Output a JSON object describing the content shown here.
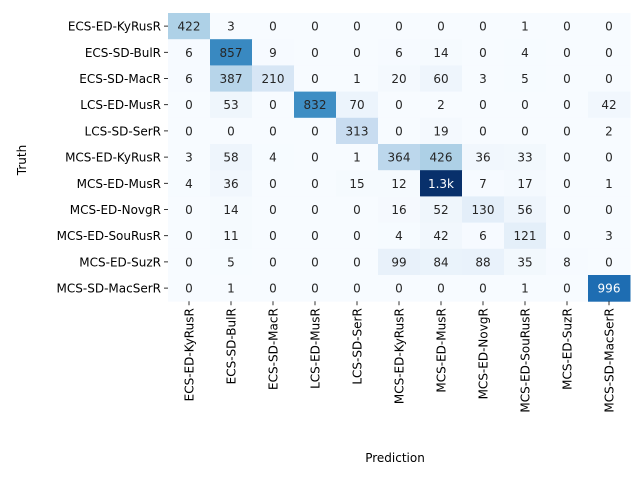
{
  "chart_data": {
    "type": "heatmap",
    "title": "",
    "xlabel": "Prediction",
    "ylabel": "Truth",
    "colormap": "Blues",
    "color_max": 1300,
    "grid": false,
    "legend": "none",
    "rows": [
      "ECS-ED-KyRusR",
      "ECS-SD-BulR",
      "ECS-SD-MacR",
      "LCS-ED-MusR",
      "LCS-SD-SerR",
      "MCS-ED-KyRusR",
      "MCS-ED-MusR",
      "MCS-ED-NovgR",
      "MCS-ED-SouRusR",
      "MCS-ED-SuzR",
      "MCS-SD-MacSerR"
    ],
    "columns": [
      "ECS-ED-KyRusR",
      "ECS-SD-BulR",
      "ECS-SD-MacR",
      "LCS-ED-MusR",
      "LCS-SD-SerR",
      "MCS-ED-KyRusR",
      "MCS-ED-MusR",
      "MCS-ED-NovgR",
      "MCS-ED-SouRusR",
      "MCS-ED-SuzR",
      "MCS-SD-MacSerR"
    ],
    "values": [
      [
        422,
        3,
        0,
        0,
        0,
        0,
        0,
        0,
        1,
        0,
        0
      ],
      [
        6,
        857,
        9,
        0,
        0,
        6,
        14,
        0,
        4,
        0,
        0
      ],
      [
        6,
        387,
        210,
        0,
        1,
        20,
        60,
        3,
        5,
        0,
        0
      ],
      [
        0,
        53,
        0,
        832,
        70,
        0,
        2,
        0,
        0,
        0,
        42
      ],
      [
        0,
        0,
        0,
        0,
        313,
        0,
        19,
        0,
        0,
        0,
        2
      ],
      [
        3,
        58,
        4,
        0,
        1,
        364,
        426,
        36,
        33,
        0,
        0
      ],
      [
        4,
        36,
        0,
        0,
        15,
        12,
        1300,
        7,
        17,
        0,
        1
      ],
      [
        0,
        14,
        0,
        0,
        0,
        16,
        52,
        130,
        56,
        0,
        0
      ],
      [
        0,
        11,
        0,
        0,
        0,
        4,
        42,
        6,
        121,
        0,
        3
      ],
      [
        0,
        5,
        0,
        0,
        0,
        99,
        84,
        88,
        35,
        8,
        0
      ],
      [
        0,
        1,
        0,
        0,
        0,
        0,
        0,
        0,
        1,
        0,
        996
      ]
    ],
    "cell_labels": [
      [
        "422",
        "3",
        "0",
        "0",
        "0",
        "0",
        "0",
        "0",
        "1",
        "0",
        "0"
      ],
      [
        "6",
        "857",
        "9",
        "0",
        "0",
        "6",
        "14",
        "0",
        "4",
        "0",
        "0"
      ],
      [
        "6",
        "387",
        "210",
        "0",
        "1",
        "20",
        "60",
        "3",
        "5",
        "0",
        "0"
      ],
      [
        "0",
        "53",
        "0",
        "832",
        "70",
        "0",
        "2",
        "0",
        "0",
        "0",
        "42"
      ],
      [
        "0",
        "0",
        "0",
        "0",
        "313",
        "0",
        "19",
        "0",
        "0",
        "0",
        "2"
      ],
      [
        "3",
        "58",
        "4",
        "0",
        "1",
        "364",
        "426",
        "36",
        "33",
        "0",
        "0"
      ],
      [
        "4",
        "36",
        "0",
        "0",
        "15",
        "12",
        "1.3k",
        "7",
        "17",
        "0",
        "1"
      ],
      [
        "0",
        "14",
        "0",
        "0",
        "0",
        "16",
        "52",
        "130",
        "56",
        "0",
        "0"
      ],
      [
        "0",
        "11",
        "0",
        "0",
        "0",
        "4",
        "42",
        "6",
        "121",
        "0",
        "3"
      ],
      [
        "0",
        "5",
        "0",
        "0",
        "0",
        "99",
        "84",
        "88",
        "35",
        "8",
        "0"
      ],
      [
        "0",
        "1",
        "0",
        "0",
        "0",
        "0",
        "0",
        "0",
        "1",
        "0",
        "996"
      ]
    ]
  }
}
